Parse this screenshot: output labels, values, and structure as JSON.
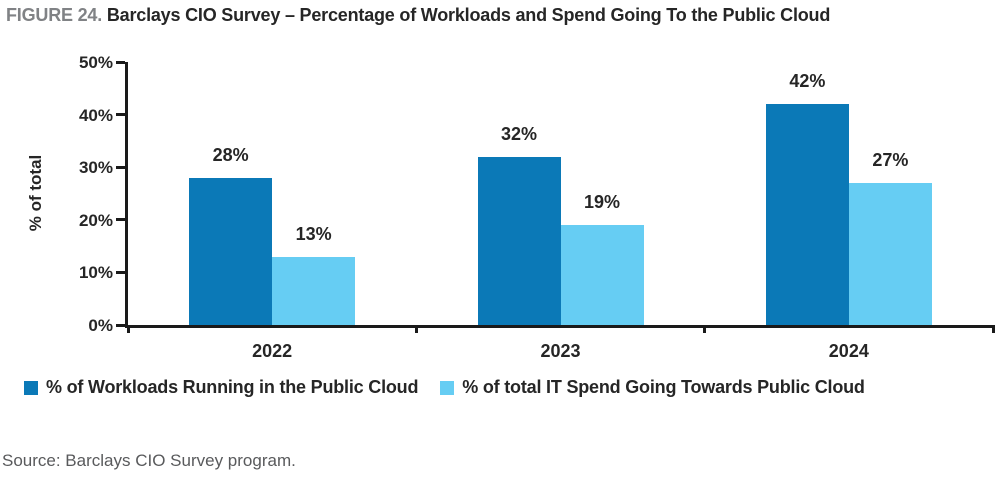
{
  "title": {
    "figure_label": "FIGURE 24.",
    "text": "Barclays CIO Survey – Percentage of Workloads and Spend Going To the Public Cloud"
  },
  "source": "Source: Barclays CIO Survey program.",
  "colors": {
    "axis": "#1a1a1a",
    "figure_label_gray": "#808285",
    "title_dark": "#262626",
    "source_gray": "#595a5c",
    "series_dark_blue": "#0b79b7",
    "series_light_blue": "#66cdf3"
  },
  "chart_data": {
    "type": "bar",
    "categories": [
      "2022",
      "2023",
      "2024"
    ],
    "series": [
      {
        "name": "% of Workloads Running in the Public Cloud",
        "values": [
          28,
          32,
          42
        ],
        "color": "#0b79b7"
      },
      {
        "name": "% of total IT Spend Going Towards Public Cloud",
        "values": [
          13,
          19,
          27
        ],
        "color": "#66cdf3"
      }
    ],
    "ylabel": "% of total",
    "xlabel": "",
    "ylim": [
      0,
      50
    ],
    "ytick_step": 10,
    "ytick_format": "{v}%",
    "value_label_format": "{v}%",
    "grid": false,
    "legend_position": "bottom"
  }
}
